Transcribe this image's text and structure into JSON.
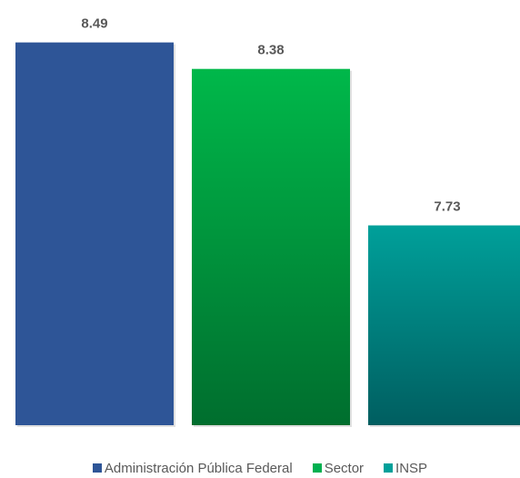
{
  "chart_data": {
    "type": "bar",
    "categories": [
      "Administración Pública Federal",
      "Sector",
      "INSP"
    ],
    "values": [
      8.49,
      8.38,
      7.73
    ],
    "value_labels": [
      "8.49",
      "8.38",
      "7.73"
    ],
    "title": "",
    "xlabel": "",
    "ylabel": "",
    "grid": false,
    "legend_position": "bottom",
    "colors": {
      "Administración Pública Federal": {
        "top": "#2E5597",
        "bottom": "#2E5597"
      },
      "Sector": {
        "top": "#00B84A",
        "bottom": "#006E2E"
      },
      "INSP": {
        "top": "#00A09A",
        "bottom": "#005E60"
      }
    }
  },
  "legend": {
    "items": [
      {
        "label": "Administración Pública Federal",
        "color": "#2E5597"
      },
      {
        "label": "Sector",
        "color": "#00B050"
      },
      {
        "label": "INSP",
        "color": "#00A09A"
      }
    ]
  }
}
